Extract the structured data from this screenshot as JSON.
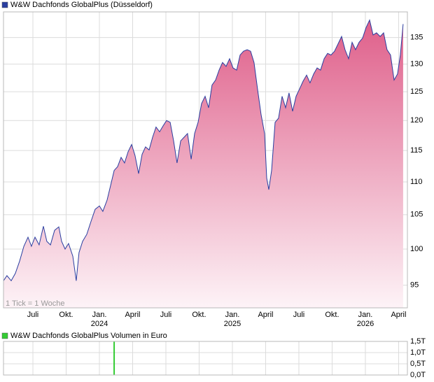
{
  "chart_data": [
    {
      "type": "area",
      "log_scale": true,
      "grid": true,
      "note": "1 Tick = 1 Woche",
      "xlim": [
        2023.279,
        2026.316
      ],
      "ylim": [
        92,
        140
      ],
      "yticks": [
        95,
        100,
        105,
        110,
        115,
        120,
        125,
        130,
        135
      ],
      "xticks": [
        {
          "value": 2023.5,
          "label": "Juli"
        },
        {
          "value": 2023.75,
          "label": "Okt."
        },
        {
          "value": 2024.0,
          "label": "Jan."
        },
        {
          "value": 2024.25,
          "label": "April"
        },
        {
          "value": 2024.5,
          "label": "Juli"
        },
        {
          "value": 2024.75,
          "label": "Okt."
        },
        {
          "value": 2025.0,
          "label": "Jan."
        },
        {
          "value": 2025.25,
          "label": "April"
        },
        {
          "value": 2025.5,
          "label": "Juli"
        },
        {
          "value": 2025.75,
          "label": "Okt."
        },
        {
          "value": 2026.0,
          "label": "Jan."
        },
        {
          "value": 2026.25,
          "label": "April"
        }
      ],
      "year_labels": [
        {
          "value": 2024.0,
          "label": "2024"
        },
        {
          "value": 2025.0,
          "label": "2025"
        },
        {
          "value": 2026.0,
          "label": "2026"
        }
      ],
      "x": [
        2023.279,
        2023.305,
        2023.337,
        2023.368,
        2023.4,
        2023.432,
        2023.463,
        2023.489,
        2023.516,
        2023.547,
        2023.579,
        2023.605,
        2023.632,
        2023.663,
        2023.695,
        2023.716,
        2023.742,
        2023.768,
        2023.8,
        2023.826,
        2023.847,
        2023.874,
        2023.905,
        2023.937,
        2023.968,
        2024.0,
        2024.026,
        2024.058,
        2024.084,
        2024.111,
        2024.137,
        2024.163,
        2024.189,
        2024.216,
        2024.242,
        2024.268,
        2024.295,
        2024.321,
        2024.347,
        2024.374,
        2024.4,
        2024.426,
        2024.453,
        2024.479,
        2024.505,
        2024.532,
        2024.558,
        2024.584,
        2024.611,
        2024.637,
        2024.663,
        2024.69,
        2024.716,
        2024.742,
        2024.768,
        2024.795,
        2024.821,
        2024.847,
        2024.874,
        2024.9,
        2024.926,
        2024.953,
        2024.979,
        2025.005,
        2025.032,
        2025.058,
        2025.084,
        2025.111,
        2025.137,
        2025.163,
        2025.189,
        2025.216,
        2025.242,
        2025.258,
        2025.274,
        2025.295,
        2025.321,
        2025.347,
        2025.374,
        2025.4,
        2025.426,
        2025.453,
        2025.479,
        2025.505,
        2025.532,
        2025.558,
        2025.584,
        2025.611,
        2025.637,
        2025.663,
        2025.69,
        2025.716,
        2025.742,
        2025.768,
        2025.795,
        2025.821,
        2025.847,
        2025.874,
        2025.9,
        2025.926,
        2025.953,
        2025.979,
        2026.005,
        2026.032,
        2026.058,
        2026.084,
        2026.111,
        2026.137,
        2026.163,
        2026.189,
        2026.216,
        2026.242,
        2026.263,
        2026.284
      ],
      "series": [
        {
          "name": "W&W Dachfonds GlobalPlus (Düsseldorf)",
          "color": "#2a3ea0",
          "values": [
            95.6,
            96.3,
            95.6,
            96.6,
            98.3,
            100.4,
            101.7,
            100.4,
            101.7,
            100.6,
            103.3,
            101.1,
            100.6,
            102.7,
            103.2,
            101.1,
            100.0,
            100.8,
            99.0,
            95.6,
            99.5,
            101.1,
            102.1,
            104.0,
            105.8,
            106.3,
            105.5,
            107.2,
            109.4,
            111.8,
            112.4,
            113.9,
            113.0,
            114.8,
            116.0,
            114.2,
            111.3,
            114.4,
            115.6,
            115.1,
            117.2,
            118.9,
            118.1,
            119.1,
            120.0,
            119.7,
            116.6,
            113.0,
            116.6,
            117.2,
            117.8,
            113.6,
            117.8,
            119.7,
            122.9,
            124.2,
            122.2,
            126.2,
            127.1,
            128.9,
            130.3,
            129.6,
            131.0,
            129.3,
            128.9,
            131.7,
            132.4,
            132.7,
            132.4,
            130.3,
            125.5,
            121.0,
            117.8,
            110.6,
            108.8,
            111.8,
            119.7,
            120.4,
            124.2,
            122.2,
            124.8,
            121.6,
            124.2,
            125.5,
            126.9,
            128.0,
            126.6,
            128.2,
            129.3,
            128.9,
            131.0,
            132.0,
            131.7,
            132.4,
            133.8,
            135.2,
            132.7,
            131.0,
            134.1,
            132.7,
            134.1,
            134.9,
            136.9,
            138.4,
            135.5,
            135.9,
            135.2,
            135.9,
            132.7,
            131.7,
            127.1,
            128.2,
            131.7,
            137.6
          ]
        }
      ]
    },
    {
      "type": "bar",
      "grid": true,
      "xlim": [
        2023.279,
        2026.316
      ],
      "ylim": [
        0,
        1.5
      ],
      "yticks": [
        {
          "value": 0,
          "label": "0,0T"
        },
        {
          "value": 0.5,
          "label": "0,5T"
        },
        {
          "value": 1.0,
          "label": "1,0T"
        },
        {
          "value": 1.5,
          "label": "1,5T"
        }
      ],
      "x": [
        2024.111
      ],
      "series": [
        {
          "name": "W&W Dachfonds GlobalPlus Volumen in Euro",
          "color": "#33cc33",
          "values": [
            1.5
          ]
        }
      ]
    }
  ]
}
